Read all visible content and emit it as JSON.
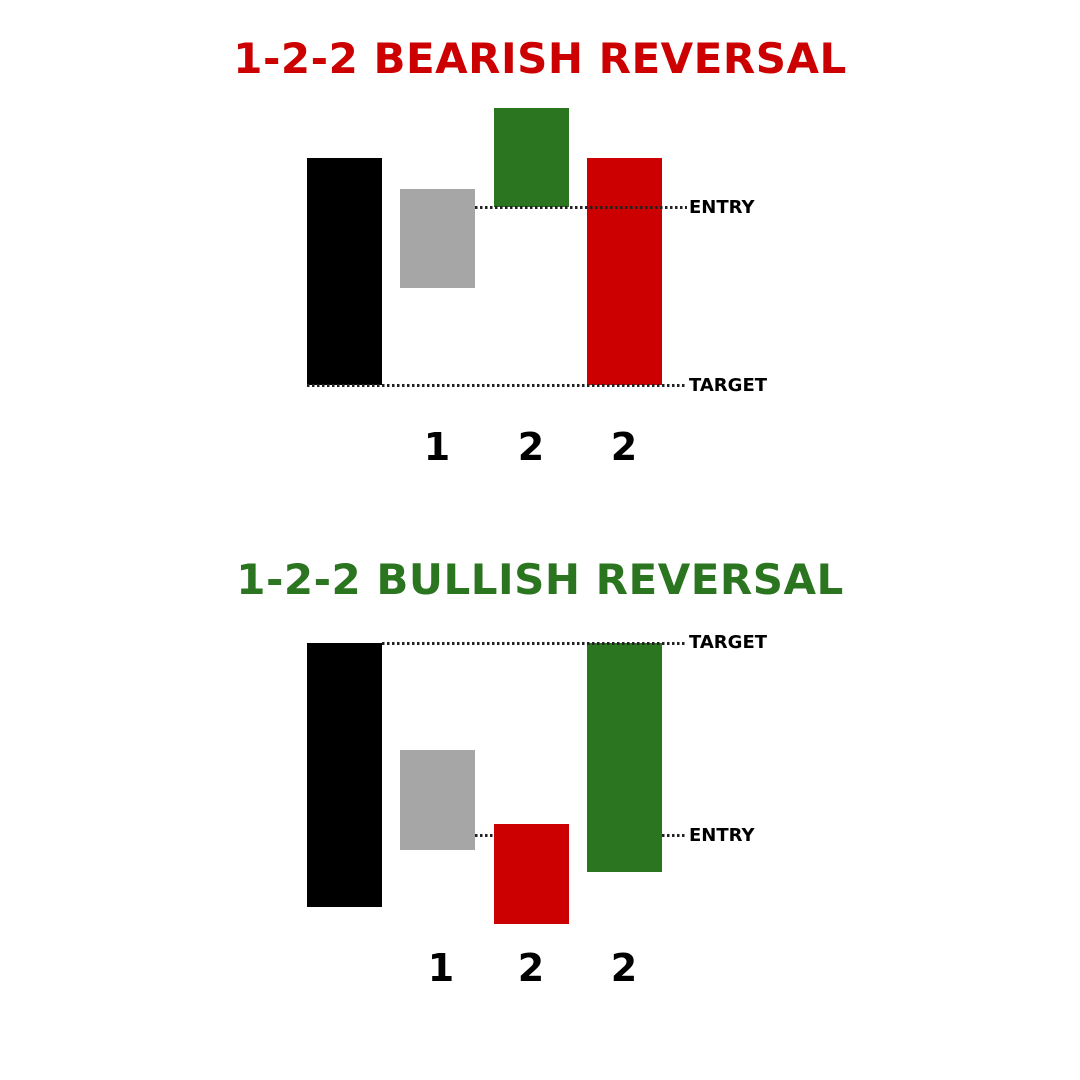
{
  "colors": {
    "bearish_title": "#cc0000",
    "bullish_title": "#2b7520",
    "black": "#000000",
    "inside_gray": "#a6a6a6",
    "up_green": "#2b7520",
    "down_red": "#cc0000",
    "dotted_line": "#222222",
    "label_text": "#000000"
  },
  "bearish": {
    "title": "1-2-2 BEARISH REVERSAL",
    "entry_label": "ENTRY",
    "target_label": "TARGET",
    "candle_labels": [
      "1",
      "2",
      "2"
    ]
  },
  "bullish": {
    "title": "1-2-2 BULLISH REVERSAL",
    "entry_label": "ENTRY",
    "target_label": "TARGET",
    "candle_labels": [
      "1",
      "2",
      "2"
    ]
  }
}
